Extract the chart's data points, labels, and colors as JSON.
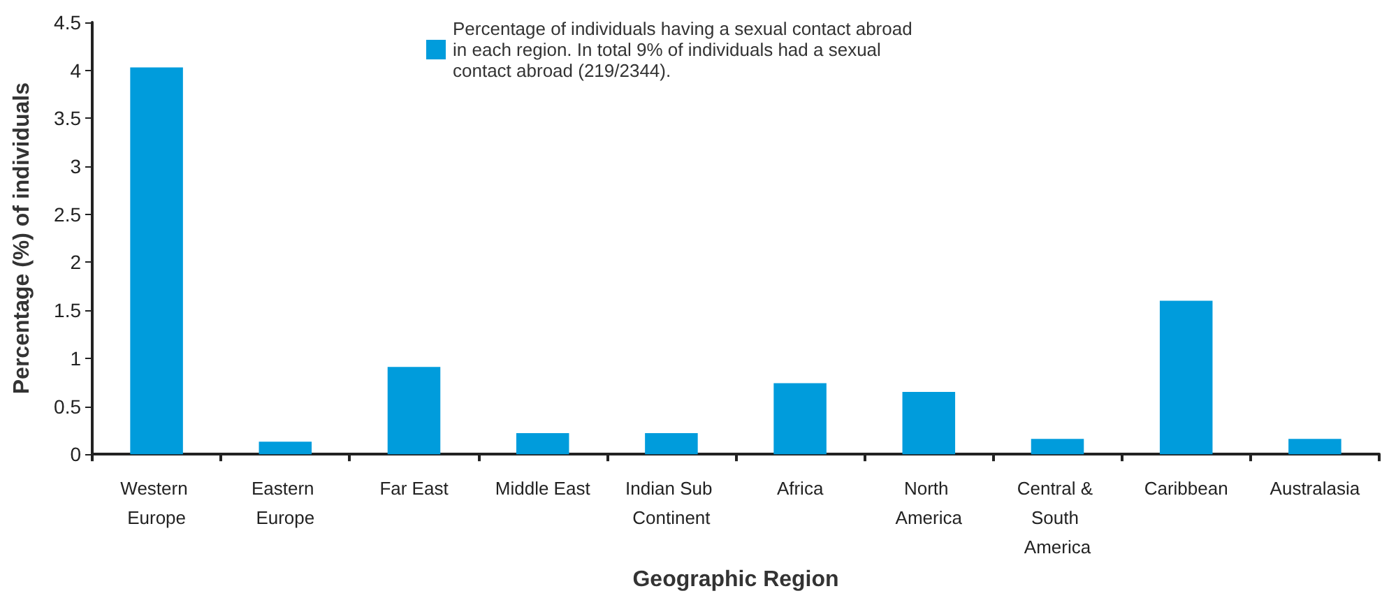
{
  "chart_data": {
    "type": "bar",
    "xlabel": "Geographic Region",
    "ylabel": "Percentage (%) of individuals",
    "categories": [
      "Western Europe",
      "Eastern Europe",
      "Far East",
      "Middle East",
      "Indian Sub Continent",
      "Africa",
      "North America",
      "Central & South America",
      "Caribbean",
      "Australasia"
    ],
    "series": [
      {
        "name": "Percentage of individuals having a sexual contact abroad in each region. In total 9% of individuals had a sexual contact abroad (219/2344).",
        "color": "#009cdc",
        "values": [
          4.03,
          0.13,
          0.91,
          0.22,
          0.22,
          0.74,
          0.65,
          0.16,
          1.6,
          0.16
        ]
      }
    ],
    "ylim": [
      0,
      4.5
    ],
    "yticks": [
      0,
      0.5,
      1,
      1.5,
      2,
      2.5,
      3,
      3.5,
      4,
      4.5
    ],
    "grid": false,
    "legend": "top"
  }
}
